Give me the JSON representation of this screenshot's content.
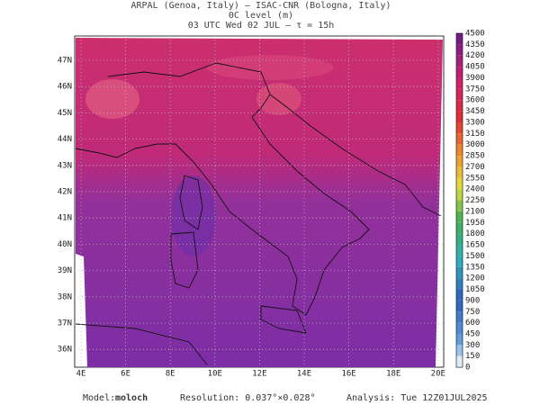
{
  "header": {
    "line1": "ARPAL (Genoa, Italy)  –  ISAC-CNR (Bologna, Italy)",
    "line2": "0C level (m)",
    "line3": "03 UTC Wed 02 JUL  –  τ = 15h"
  },
  "map": {
    "lat_labels": [
      "47N",
      "46N",
      "45N",
      "44N",
      "43N",
      "42N",
      "41N",
      "40N",
      "39N",
      "38N",
      "37N",
      "36N"
    ],
    "lon_labels": [
      "4E",
      "6E",
      "8E",
      "10E",
      "12E",
      "14E",
      "16E",
      "18E",
      "20E"
    ]
  },
  "colorbar": {
    "labels": [
      "4500",
      "4350",
      "4200",
      "4050",
      "3900",
      "3750",
      "3600",
      "3450",
      "3300",
      "3150",
      "3000",
      "2850",
      "2700",
      "2550",
      "2400",
      "2250",
      "2100",
      "1950",
      "1800",
      "1650",
      "1500",
      "1350",
      "1200",
      "1050",
      "900",
      "750",
      "600",
      "450",
      "300",
      "150",
      "0"
    ]
  },
  "footer": {
    "model_label": "Model:",
    "model": "moloch",
    "resolution": "Resolution: 0.037°×0.028°",
    "analysis": "Analysis: Tue 12Z01JUL2025"
  }
}
